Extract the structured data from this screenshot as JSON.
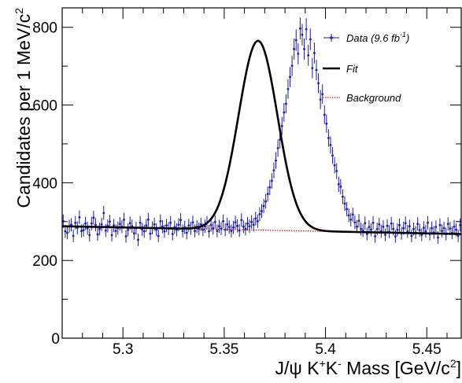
{
  "chart_data": {
    "type": "scatter",
    "title": "",
    "xlabel": {
      "base": "J/ψ K",
      "sup1": "+",
      "mid": "K",
      "sup2": "-",
      "rest": " Mass [GeV/c",
      "sup3": "2",
      "end": "]"
    },
    "ylabel": {
      "base": "Candidates per 1 MeV/c",
      "sup": "2"
    },
    "xlim": [
      5.27,
      5.467
    ],
    "ylim": [
      0,
      850
    ],
    "x_ticks": [
      5.3,
      5.35,
      5.4,
      5.45
    ],
    "x_tick_labels": [
      "5.3",
      "5.35",
      "5.4",
      "5.45"
    ],
    "y_ticks": [
      200,
      400,
      600,
      800
    ],
    "y_tick_labels": [
      "200",
      "400",
      "600",
      "800"
    ],
    "grid": false,
    "legend_placement": "top-right",
    "legend": [
      {
        "label": "Data (9.6 fb",
        "sup": "-1",
        "close": ")",
        "color": "#1a1ab8",
        "style": "points"
      },
      {
        "label": "Fit",
        "color": "#000000",
        "style": "solid"
      },
      {
        "label": "Background",
        "color": "#e02020",
        "style": "dotted"
      }
    ],
    "colors": {
      "data": "#1a1ab8",
      "fit": "#000000",
      "background": "#e02020"
    },
    "model": {
      "background_at_xlim": [
        288,
        268
      ],
      "signal_peak_mass": 5.3667,
      "signal_width": 0.0096,
      "signal_peak_height": 487
    },
    "series": [
      {
        "name": "Data (9.6 fb-1)",
        "x_start": 5.2705,
        "x_step": 0.001,
        "values": [
          301,
          275,
          271,
          288,
          292,
          263,
          297,
          284,
          311,
          276,
          278,
          295,
          283,
          265,
          295,
          310,
          292,
          267,
          281,
          293,
          322,
          277,
          289,
          300,
          265,
          290,
          276,
          283,
          294,
          287,
          305,
          262,
          279,
          296,
          288,
          270,
          283,
          253,
          297,
          280,
          275,
          290,
          305,
          269,
          284,
          293,
          279,
          263,
          301,
          287,
          275,
          290,
          282,
          297,
          268,
          286,
          279,
          292,
          304,
          276,
          285,
          271,
          290,
          283,
          298,
          276,
          287,
          281,
          293,
          279,
          288,
          297,
          275,
          291,
          283,
          299,
          276,
          288,
          282,
          301,
          279,
          293,
          286,
          276,
          285,
          298,
          289,
          277,
          304,
          287,
          281,
          295,
          288,
          299,
          292,
          308,
          301,
          319,
          327,
          340,
          352,
          371,
          388,
          405,
          432,
          457,
          489,
          511,
          546,
          581,
          603,
          641,
          672,
          701,
          744,
          767,
          732,
          797,
          781,
          744,
          795,
          728,
          769,
          695,
          734,
          690,
          656,
          614,
          628,
          575,
          552,
          515,
          497,
          470,
          445,
          430,
          396,
          390,
          364,
          346,
          332,
          316,
          305,
          318,
          298,
          287,
          302,
          281,
          277,
          296,
          268,
          286,
          279,
          297,
          262,
          281,
          293,
          275,
          287,
          266,
          289,
          274,
          295,
          281,
          262,
          279,
          291,
          270,
          283,
          296,
          275,
          288,
          263,
          281,
          272,
          294,
          278,
          266,
          284,
          275,
          297,
          268,
          283,
          272,
          286,
          259,
          291,
          276,
          283,
          268,
          294,
          282,
          271,
          287,
          279,
          263,
          291,
          275,
          285,
          271,
          264,
          302,
          277,
          281,
          262,
          296,
          277,
          266,
          258,
          279,
          289,
          247,
          276,
          297,
          268,
          263,
          285,
          274,
          290
        ]
      }
    ]
  }
}
